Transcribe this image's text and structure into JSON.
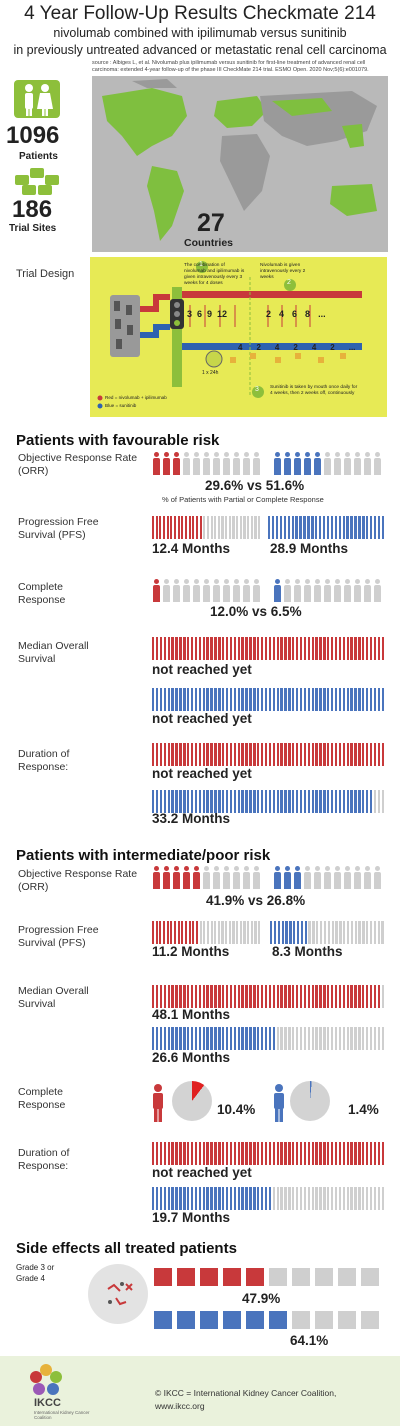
{
  "header": {
    "title": "4 Year Follow-Up Results Checkmate 214",
    "subtitle1": "nivolumab combined with ipilimumab versus sunitinib",
    "subtitle2": "in previously untreated advanced or metastatic renal cell carcinoma",
    "source": "source : Albiges L, et al. Nivolumab plus ipilimumab versus sunitinib for first-line treatment of advanced renal cell carcinoma: extended 4-year follow-up of the phase III CheckMate 214 trial. ESMO Open. 2020 Nov;5(6):e001079."
  },
  "stats": {
    "patients_value": "1096",
    "patients_label": "Patients",
    "sites_value": "186",
    "sites_label": "Trial Sites",
    "countries_value": "27",
    "countries_label": "Countries"
  },
  "trial_design": {
    "label": "Trial Design",
    "text1": "The combination of nivolumab and ipilimumab is given intravenously every 3 weeks for 4 doses",
    "text2": "Nivolumab is given intravenously every 2 weeks",
    "text3": "Sunitinib is taken by mouth once daily for 4 weeks, then 2 weeks off, continuously",
    "step1": "1",
    "step2": "2",
    "step3": "3",
    "doses_red": [
      "3",
      "6",
      "9",
      "12"
    ],
    "doses_red2": [
      "2",
      "4",
      "6",
      "8"
    ],
    "doses_blue": [
      "4",
      "2",
      "4",
      "2",
      "4",
      "2"
    ],
    "daily": "1 x 24h",
    "ellipsis": "...",
    "legend_red": "Red = nivolumab + ipilimumab",
    "legend_blue": "Blue = sunitinib",
    "colors": {
      "bg": "#e7ea55",
      "red": "#c8393b",
      "blue": "#2e62b0",
      "green": "#8dbf3b"
    }
  },
  "favourable": {
    "heading": "Patients with favourable risk",
    "orr_label": "Objective Response Rate (ORR)",
    "orr_value": "29.6% vs 51.6%",
    "orr_note": "% of Patients with Partial or Complete Response",
    "orr_fraction_red": 0.296,
    "orr_fraction_blue": 0.516,
    "pfs_label": "Progression Free Survival (PFS)",
    "pfs_red": "12.4 Months",
    "pfs_blue": "28.9 Months",
    "cr_label": "Complete Response",
    "cr_value": "12.0% vs 6.5%",
    "os_label": "Median Overall Survival",
    "os_red": "not reached yet",
    "os_blue": "not reached yet",
    "dor_label": "Duration of Response:",
    "dor_red": "not reached yet",
    "dor_blue": "33.2 Months"
  },
  "intermediate": {
    "heading": "Patients with intermediate/poor risk",
    "orr_label": "Objective Response Rate (ORR)",
    "orr_value": "41.9% vs 26.8%",
    "orr_fraction_red": 0.419,
    "orr_fraction_blue": 0.268,
    "pfs_label": "Progression Free Survival (PFS)",
    "pfs_red": "11.2 Months",
    "pfs_blue": "8.3 Months",
    "os_label": "Median Overall Survival",
    "os_red": "48.1 Months",
    "os_blue": "26.6 Months",
    "cr_label": "Complete Response",
    "cr_red": "10.4%",
    "cr_blue": "1.4%",
    "cr_fraction_red": 0.104,
    "cr_fraction_blue": 0.014,
    "dor_label": "Duration of Response:",
    "dor_red": "not reached yet",
    "dor_blue": "19.7 Months"
  },
  "side_effects": {
    "heading": "Side effects all treated patients",
    "grade_label": "Grade 3 or Grade 4",
    "red_value": "47.9%",
    "blue_value": "64.1%",
    "red_fraction": 0.479,
    "blue_fraction": 0.641
  },
  "footer": {
    "logo_text": "IKCC",
    "logo_sub": "International Kidney Cancer Coalition",
    "line1": "© IKCC = International Kidney Cancer Coalition,",
    "line2": "www.ikcc.org"
  }
}
